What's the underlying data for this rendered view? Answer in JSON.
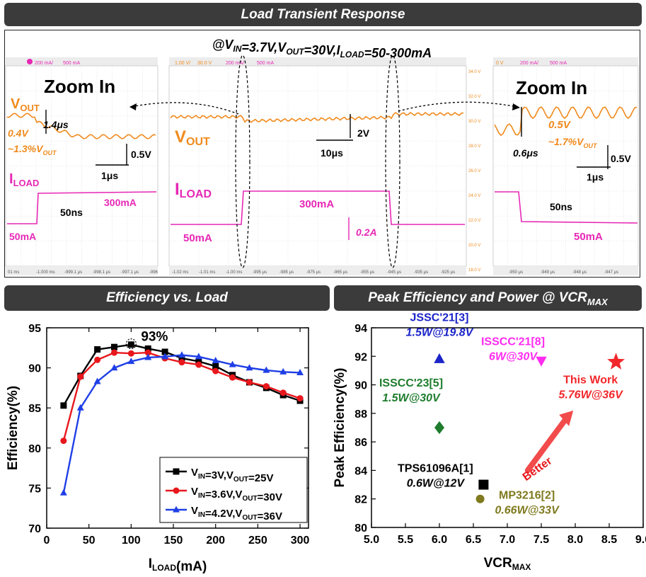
{
  "banners": {
    "top": "Load Transient Response",
    "left": "Efficiency vs. Load",
    "right_base": "Peak Efficiency and Power @ VCR",
    "right_sub": "MAX"
  },
  "scope": {
    "condition": {
      "p1": "@V",
      "p1sub": "IN",
      "p2": "=3.7V,V",
      "p2sub": "OUT",
      "p3": "=30V,I",
      "p3sub": "LOAD",
      "p4": "=50-300mA"
    },
    "left": {
      "zoom": "Zoom In",
      "vout": "V",
      "vout_sub": "OUT",
      "t14": "1.4μs",
      "v04": "0.4V",
      "pct": "~1.3%V",
      "pct_sub": "OUT",
      "v05": "0.5V",
      "t1": "1μs",
      "iload": "I",
      "iload_sub": "LOAD",
      "t50": "50ns",
      "ma300": "300mA",
      "ma50": "50mA",
      "header_a": "200 mA/",
      "header_b": "500 mA",
      "time_ticks": [
        "01 ms",
        "-1.000 ms",
        "-999.1 μs",
        "-998.1 μs",
        "-997.1 μs",
        "-996"
      ]
    },
    "middle": {
      "vout": "V",
      "vout_sub": "OUT",
      "v2": "2V",
      "t10": "10μs",
      "iload": "I",
      "iload_sub": "LOAD",
      "ma300": "300mA",
      "ma50": "50mA",
      "a02": "0.2A",
      "header_a": "1.00 V/",
      "header_b": "30.0 V",
      "header_c": "200 mA/",
      "header_d": "500 mA",
      "time_ticks": [
        "-1.02 ms",
        "-1.01 ms",
        "-1.00 ms",
        "-995 μs",
        "-985 μs",
        "-975 μs",
        "-965 μs",
        "-955 μs",
        "-945 μs",
        "-935 μs",
        "-925 μs"
      ],
      "right_scale": [
        "34.0 V",
        "32.0 V",
        "30.0 V",
        "28.0 V",
        "26.0 V",
        "24.0 V",
        "22.0 V",
        "20.0 V",
        "18.0 V"
      ]
    },
    "right": {
      "zoom": "Zoom In",
      "v05a": "0.5V",
      "t06": "0.6μs",
      "pct": "~1.7%V",
      "pct_sub": "OUT",
      "v05b": "0.5V",
      "t1": "1μs",
      "t50": "50ns",
      "ma50": "50mA",
      "header_a": "0 V",
      "header_b": "200 mA/",
      "header_c": "500 mA",
      "time_ticks": [
        "-950 μs",
        "-949 μs",
        "-948 μs",
        "-947 μs"
      ]
    }
  },
  "chart_data": [
    {
      "type": "line",
      "title": "Efficiency vs. Load",
      "xlabel": "I",
      "xlabel_sub": "LOAD",
      "xlabel_tail": "(mA)",
      "ylabel": "Efficiency(%)",
      "xlim": [
        0,
        310
      ],
      "ylim": [
        70,
        95
      ],
      "xticks": [
        0,
        50,
        100,
        150,
        200,
        250,
        300
      ],
      "yticks": [
        70,
        75,
        80,
        85,
        90,
        95
      ],
      "grid": false,
      "legend": "bottom-right",
      "annotation": {
        "text": "93%",
        "x": 100,
        "y": 93
      },
      "series": [
        {
          "name": "V_IN=3V,V_OUT=25V",
          "label": [
            [
              "V",
              ""
            ],
            [
              "IN",
              "sub"
            ],
            [
              "=3V,V",
              ""
            ],
            [
              "OUT",
              "sub"
            ],
            [
              "=25V",
              ""
            ]
          ],
          "color": "#000000",
          "marker": "square",
          "x": [
            20,
            40,
            60,
            80,
            100,
            120,
            140,
            160,
            180,
            200,
            220,
            240,
            260,
            280,
            300
          ],
          "y": [
            85.3,
            89.0,
            92.3,
            92.6,
            92.9,
            92.4,
            92.0,
            91.2,
            90.8,
            90.2,
            89.1,
            88.2,
            87.5,
            86.6,
            85.9
          ]
        },
        {
          "name": "V_IN=3.6V,V_OUT=30V",
          "label": [
            [
              "V",
              ""
            ],
            [
              "IN",
              "sub"
            ],
            [
              "=3.6V,V",
              ""
            ],
            [
              "OUT",
              "sub"
            ],
            [
              "=30V",
              ""
            ]
          ],
          "color": "#e8171c",
          "marker": "circle",
          "x": [
            20,
            40,
            60,
            80,
            100,
            120,
            140,
            160,
            180,
            200,
            220,
            240,
            260,
            280,
            300
          ],
          "y": [
            80.9,
            88.9,
            91.0,
            91.9,
            91.8,
            91.9,
            91.2,
            90.7,
            90.4,
            89.6,
            88.8,
            88.2,
            87.7,
            86.9,
            86.2
          ]
        },
        {
          "name": "V_IN=4.2V,V_OUT=36V",
          "label": [
            [
              "V",
              ""
            ],
            [
              "IN",
              "sub"
            ],
            [
              "=4.2V,V",
              ""
            ],
            [
              "OUT",
              "sub"
            ],
            [
              "=36V",
              ""
            ]
          ],
          "color": "#1f3fe6",
          "marker": "triangle",
          "x": [
            20,
            40,
            60,
            80,
            100,
            120,
            140,
            160,
            180,
            200,
            220,
            240,
            260,
            280,
            300
          ],
          "y": [
            74.4,
            85.0,
            88.3,
            90.0,
            90.8,
            91.3,
            91.4,
            91.6,
            91.4,
            90.9,
            90.4,
            90.0,
            89.7,
            89.5,
            89.4
          ]
        }
      ]
    },
    {
      "type": "scatter",
      "title": "Peak Efficiency and Power @ VCR_MAX",
      "xlabel": "VCR",
      "xlabel_sub": "MAX",
      "ylabel": "Peak Efficiency(%)",
      "xlim": [
        5.0,
        9.0
      ],
      "ylim": [
        80,
        94
      ],
      "xticks": [
        "5.0",
        "5.5",
        "6.0",
        "6.5",
        "7.0",
        "7.5",
        "8.0",
        "8.5",
        "9.0"
      ],
      "yticks": [
        80,
        82,
        84,
        86,
        88,
        90,
        92,
        94
      ],
      "grid": false,
      "arrow_label": "Better",
      "points": [
        {
          "name": "JSSC'21[3]",
          "power": "1.5W@19.8V",
          "x": 6.0,
          "y": 91.8,
          "color": "#1b24c8",
          "marker": "triangle"
        },
        {
          "name": "ISSCC'21[8]",
          "power": "6W@30V",
          "x": 7.5,
          "y": 91.7,
          "color": "#ff2bf0",
          "marker": "triangle-down"
        },
        {
          "name": "This Work",
          "power": "5.76W@36V",
          "x": 8.6,
          "y": 91.6,
          "color": "#f2262a",
          "marker": "star"
        },
        {
          "name": "ISSCC'23[5]",
          "power": "1.5W@30V",
          "x": 6.0,
          "y": 87.0,
          "color": "#1e7c2c",
          "marker": "diamond"
        },
        {
          "name": "TPS61096A[1]",
          "power": "0.6W@12V",
          "x": 6.65,
          "y": 83.0,
          "color": "#000000",
          "marker": "square"
        },
        {
          "name": "MP3216[2]",
          "power": "0.66W@33V",
          "x": 6.6,
          "y": 82.0,
          "color": "#7f7a1e",
          "marker": "circle"
        }
      ]
    }
  ]
}
